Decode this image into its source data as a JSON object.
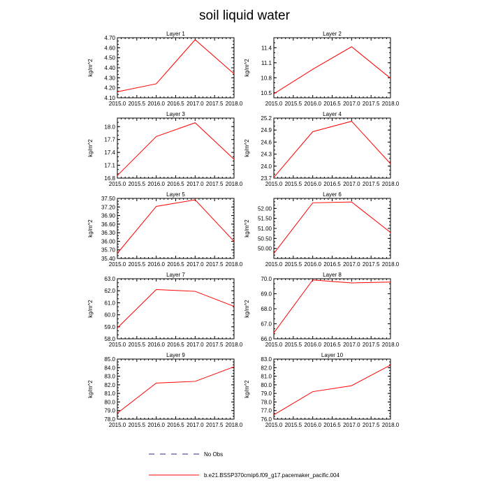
{
  "figure": {
    "title": "soil liquid water"
  },
  "legend": {
    "placement": "bottom-center",
    "entries": [
      {
        "label": "No Obs",
        "style": "dashed",
        "color": "#2a2a8a"
      },
      {
        "label": "b.e21.BSSP370cmip6.f09_g17.pacemaker_pacific.004",
        "style": "solid",
        "color": "#ff0000"
      }
    ]
  },
  "colors": {
    "series": "#ff0000",
    "obs": "#2a2a8a",
    "axis": "#000000"
  },
  "chart_data": [
    {
      "type": "line",
      "title": "Layer 1",
      "xlabel": "",
      "ylabel": "kg/m^2",
      "x": [
        2015.0,
        2016.0,
        2017.0,
        2018.0
      ],
      "xticks": [
        "2015.0",
        "2015.5",
        "2016.0",
        "2016.5",
        "2017.0",
        "2017.5",
        "2018.0"
      ],
      "xlim": [
        2015.0,
        2018.0
      ],
      "ylim": [
        4.1,
        4.7
      ],
      "yticks": [
        "4.10",
        "4.20",
        "4.30",
        "4.40",
        "4.50",
        "4.60",
        "4.70"
      ],
      "series": [
        {
          "name": "b.e21.BSSP370cmip6.f09_g17.pacemaker_pacific.004",
          "values": [
            4.16,
            4.24,
            4.68,
            4.34
          ]
        }
      ]
    },
    {
      "type": "line",
      "title": "Layer 2",
      "xlabel": "",
      "ylabel": "kg/m^2",
      "x": [
        2015.0,
        2016.0,
        2017.0,
        2018.0
      ],
      "xticks": [
        "2015.0",
        "2015.5",
        "2016.0",
        "2016.5",
        "2017.0",
        "2017.5",
        "2018.0"
      ],
      "xlim": [
        2015.0,
        2018.0
      ],
      "ylim": [
        10.4,
        11.6
      ],
      "yticks": [
        "10.5",
        "10.8",
        "11.1",
        "11.4"
      ],
      "series": [
        {
          "name": "b.e21.BSSP370cmip6.f09_g17.pacemaker_pacific.004",
          "values": [
            10.48,
            10.97,
            11.42,
            10.79
          ]
        }
      ]
    },
    {
      "type": "line",
      "title": "Layer 3",
      "xlabel": "",
      "ylabel": "kg/m^2",
      "x": [
        2015.0,
        2016.0,
        2017.0,
        2018.0
      ],
      "xticks": [
        "2015.0",
        "2015.5",
        "2016.0",
        "2016.5",
        "2017.0",
        "2017.5",
        "2018.0"
      ],
      "xlim": [
        2015.0,
        2018.0
      ],
      "ylim": [
        16.8,
        18.2
      ],
      "yticks": [
        "16.8",
        "17.1",
        "17.4",
        "17.7",
        "18.0"
      ],
      "series": [
        {
          "name": "b.e21.BSSP370cmip6.f09_g17.pacemaker_pacific.004",
          "values": [
            16.86,
            17.77,
            18.09,
            17.24
          ]
        }
      ]
    },
    {
      "type": "line",
      "title": "Layer 4",
      "xlabel": "",
      "ylabel": "kg/m^2",
      "x": [
        2015.0,
        2016.0,
        2017.0,
        2018.0
      ],
      "xticks": [
        "2015.0",
        "2015.5",
        "2016.0",
        "2016.5",
        "2017.0",
        "2017.5",
        "2018.0"
      ],
      "xlim": [
        2015.0,
        2018.0
      ],
      "ylim": [
        23.7,
        25.2
      ],
      "yticks": [
        "23.7",
        "24.0",
        "24.3",
        "24.6",
        "24.9",
        "25.2"
      ],
      "series": [
        {
          "name": "b.e21.BSSP370cmip6.f09_g17.pacemaker_pacific.004",
          "values": [
            23.72,
            24.86,
            25.12,
            24.06
          ]
        }
      ]
    },
    {
      "type": "line",
      "title": "Layer 5",
      "xlabel": "",
      "ylabel": "kg/m^2",
      "x": [
        2015.0,
        2016.0,
        2017.0,
        2018.0
      ],
      "xticks": [
        "2015.0",
        "2015.5",
        "2016.0",
        "2016.5",
        "2017.0",
        "2017.5",
        "2018.0"
      ],
      "xlim": [
        2015.0,
        2018.0
      ],
      "ylim": [
        35.4,
        37.5
      ],
      "yticks": [
        "35.40",
        "35.70",
        "36.00",
        "36.30",
        "36.60",
        "36.90",
        "37.20",
        "37.50"
      ],
      "series": [
        {
          "name": "b.e21.BSSP370cmip6.f09_g17.pacemaker_pacific.004",
          "values": [
            35.58,
            37.22,
            37.45,
            36.0
          ]
        }
      ]
    },
    {
      "type": "line",
      "title": "Layer 6",
      "xlabel": "",
      "ylabel": "kg/m^2",
      "x": [
        2015.0,
        2016.0,
        2017.0,
        2018.0
      ],
      "xticks": [
        "2015.0",
        "2015.5",
        "2016.0",
        "2016.5",
        "2017.0",
        "2017.5",
        "2018.0"
      ],
      "xlim": [
        2015.0,
        2018.0
      ],
      "ylim": [
        49.5,
        52.5
      ],
      "yticks": [
        "50.00",
        "50.50",
        "51.00",
        "51.50",
        "52.00"
      ],
      "series": [
        {
          "name": "b.e21.BSSP370cmip6.f09_g17.pacemaker_pacific.004",
          "values": [
            49.75,
            52.28,
            52.32,
            50.8
          ]
        }
      ]
    },
    {
      "type": "line",
      "title": "Layer 7",
      "xlabel": "",
      "ylabel": "kg/m^2",
      "x": [
        2015.0,
        2016.0,
        2017.0,
        2018.0
      ],
      "xticks": [
        "2015.0",
        "2015.5",
        "2016.0",
        "2016.5",
        "2017.0",
        "2017.5",
        "2018.0"
      ],
      "xlim": [
        2015.0,
        2018.0
      ],
      "ylim": [
        58.0,
        63.0
      ],
      "yticks": [
        "58.0",
        "59.0",
        "60.0",
        "61.0",
        "62.0",
        "63.0"
      ],
      "series": [
        {
          "name": "b.e21.BSSP370cmip6.f09_g17.pacemaker_pacific.004",
          "values": [
            58.9,
            62.1,
            61.95,
            60.7
          ]
        }
      ]
    },
    {
      "type": "line",
      "title": "Layer 8",
      "xlabel": "",
      "ylabel": "kg/m^2",
      "x": [
        2015.0,
        2016.0,
        2017.0,
        2018.0
      ],
      "xticks": [
        "2015.0",
        "2015.5",
        "2016.0",
        "2016.5",
        "2017.0",
        "2017.5",
        "2018.0"
      ],
      "xlim": [
        2015.0,
        2018.0
      ],
      "ylim": [
        66.0,
        70.0
      ],
      "yticks": [
        "66.0",
        "67.0",
        "68.0",
        "69.0",
        "70.0"
      ],
      "series": [
        {
          "name": "b.e21.BSSP370cmip6.f09_g17.pacemaker_pacific.004",
          "values": [
            66.4,
            69.92,
            69.72,
            69.78
          ]
        }
      ]
    },
    {
      "type": "line",
      "title": "Layer 9",
      "xlabel": "",
      "ylabel": "kg/m^2",
      "x": [
        2015.0,
        2016.0,
        2017.0,
        2018.0
      ],
      "xticks": [
        "2015.0",
        "2015.5",
        "2016.0",
        "2016.5",
        "2017.0",
        "2017.5",
        "2018.0"
      ],
      "xlim": [
        2015.0,
        2018.0
      ],
      "ylim": [
        78.0,
        85.0
      ],
      "yticks": [
        "78.0",
        "79.0",
        "80.0",
        "81.0",
        "82.0",
        "83.0",
        "84.0",
        "85.0"
      ],
      "series": [
        {
          "name": "b.e21.BSSP370cmip6.f09_g17.pacemaker_pacific.004",
          "values": [
            78.7,
            82.2,
            82.4,
            84.1
          ]
        }
      ]
    },
    {
      "type": "line",
      "title": "Layer 10",
      "xlabel": "",
      "ylabel": "kg/m^2",
      "x": [
        2015.0,
        2016.0,
        2017.0,
        2018.0
      ],
      "xticks": [
        "2015.0",
        "2015.5",
        "2016.0",
        "2016.5",
        "2017.0",
        "2017.5",
        "2018.0"
      ],
      "xlim": [
        2015.0,
        2018.0
      ],
      "ylim": [
        76.0,
        83.0
      ],
      "yticks": [
        "76.0",
        "77.0",
        "78.0",
        "79.0",
        "80.0",
        "81.0",
        "82.0",
        "83.0"
      ],
      "series": [
        {
          "name": "b.e21.BSSP370cmip6.f09_g17.pacemaker_pacific.004",
          "values": [
            76.5,
            79.2,
            79.9,
            82.3
          ]
        }
      ]
    }
  ]
}
